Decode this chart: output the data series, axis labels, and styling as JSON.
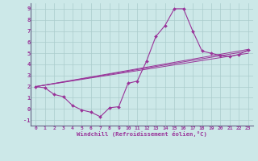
{
  "xlabel": "Windchill (Refroidissement éolien,°C)",
  "xlim": [
    -0.5,
    23.5
  ],
  "ylim": [
    -1.5,
    9.5
  ],
  "xticks": [
    0,
    1,
    2,
    3,
    4,
    5,
    6,
    7,
    8,
    9,
    10,
    11,
    12,
    13,
    14,
    15,
    16,
    17,
    18,
    19,
    20,
    21,
    22,
    23
  ],
  "yticks": [
    -1,
    0,
    1,
    2,
    3,
    4,
    5,
    6,
    7,
    8,
    9
  ],
  "background_color": "#cce8e8",
  "grid_color": "#aacccc",
  "line_color": "#993399",
  "hours": [
    0,
    1,
    2,
    3,
    4,
    5,
    6,
    7,
    8,
    9,
    10,
    11,
    12,
    13,
    14,
    15,
    16,
    17,
    18,
    19,
    20,
    21,
    22,
    23
  ],
  "main_series": [
    2.0,
    1.9,
    1.3,
    1.1,
    0.3,
    -0.1,
    -0.3,
    -0.7,
    0.1,
    0.2,
    2.3,
    2.5,
    4.3,
    6.5,
    7.5,
    9.0,
    9.0,
    7.0,
    5.2,
    5.0,
    4.8,
    4.7,
    4.9,
    5.3
  ],
  "straight_lines": [
    [
      [
        0,
        23
      ],
      [
        2.0,
        5.0
      ]
    ],
    [
      [
        0,
        23
      ],
      [
        2.0,
        5.2
      ]
    ],
    [
      [
        0,
        23
      ],
      [
        2.0,
        5.35
      ]
    ]
  ]
}
